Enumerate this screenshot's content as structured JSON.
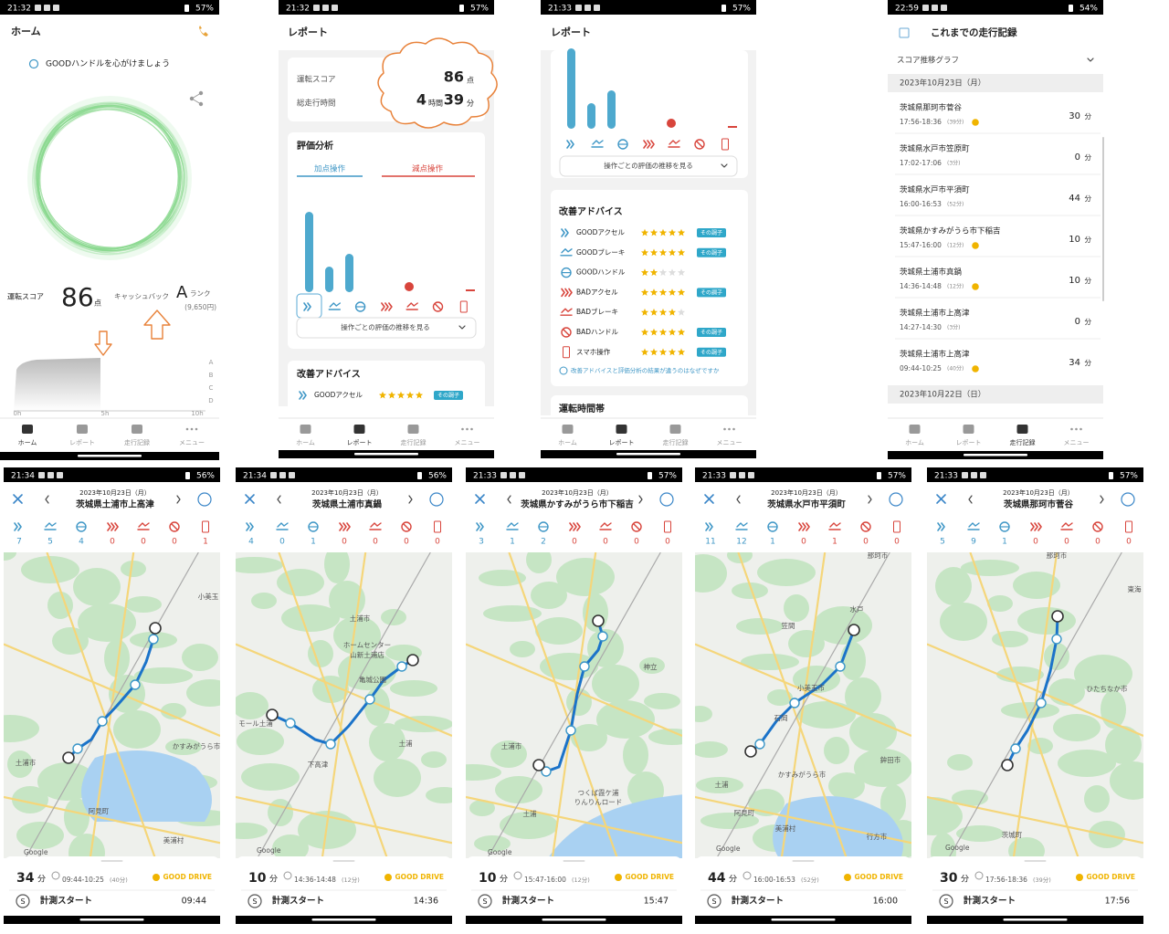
{
  "nav": [
    "ホーム",
    "レポート",
    "走行記録",
    "メニュー"
  ],
  "home": {
    "status_time": "21:32",
    "battery": "57%",
    "title": "ホーム",
    "tip": "GOODハンドルを心がけましょう",
    "score_label": "運転スコア",
    "score": 86,
    "score_unit": "点",
    "cashback_label": "キャッシュバック",
    "rank": "A",
    "rank_unit": "ランク",
    "cashback": "(9,650円)",
    "chart_x": [
      "0h",
      "5h",
      "10h"
    ],
    "chart_y": [
      "A",
      "B",
      "C",
      "D"
    ]
  },
  "report_summary": {
    "status_time": "21:32",
    "battery": "57%",
    "title": "レポート",
    "score_label": "運転スコア",
    "score": 86,
    "score_unit": "点",
    "time_label": "総走行時間",
    "hours": 4,
    "hours_unit": "時間",
    "minutes": 39,
    "minutes_unit": "分",
    "eval_title": "評価分析",
    "tabs": [
      "加点操作",
      "減点操作"
    ],
    "trend_button": "操作ごとの評価の推移を見る",
    "advice_title": "改善アドバイス",
    "advice": [
      {
        "name": "GOODアクセル",
        "stars": 5,
        "badge": "その調子"
      }
    ]
  },
  "report_advice": {
    "status_time": "21:33",
    "battery": "57%",
    "title": "レポート",
    "trend_button": "操作ごとの評価の推移を見る",
    "advice_title": "改善アドバイス",
    "advice": [
      {
        "name": "GOODアクセル",
        "stars": 5,
        "badge": "その調子"
      },
      {
        "name": "GOODブレーキ",
        "stars": 5,
        "badge": "その調子"
      },
      {
        "name": "GOODハンドル",
        "stars": 2
      },
      {
        "name": "BADアクセル",
        "stars": 5,
        "badge": "その調子"
      },
      {
        "name": "BADブレーキ",
        "stars": 4
      },
      {
        "name": "BADハンドル",
        "stars": 5,
        "badge": "その調子"
      },
      {
        "name": "スマホ操作",
        "stars": 5,
        "badge": "その調子"
      }
    ],
    "help_link": "改善アドバイスと評価分析の結果が違うのはなぜですか",
    "section": "運転時間帯"
  },
  "history": {
    "status_time": "22:59",
    "battery": "54%",
    "title": "これまでの走行記録",
    "graph": "スコア推移グラフ",
    "date1": "2023年10月23日（月）",
    "date2": "2023年10月22日（日）",
    "duration_unit": "分",
    "trips": [
      {
        "place": "茨城県那珂市菅谷",
        "time": "17:56-18:36",
        "length": "(39分)",
        "good": true,
        "duration": 30
      },
      {
        "place": "茨城県水戸市笠原町",
        "time": "17:02-17:06",
        "length": "(3分)",
        "good": false,
        "duration": 0
      },
      {
        "place": "茨城県水戸市平須町",
        "time": "16:00-16:53",
        "length": "(52分)",
        "good": false,
        "duration": 44
      },
      {
        "place": "茨城県かすみがうら市下稲吉",
        "time": "15:47-16:00",
        "length": "(12分)",
        "good": true,
        "duration": 10
      },
      {
        "place": "茨城県土浦市真鍋",
        "time": "14:36-14:48",
        "length": "(12分)",
        "good": true,
        "duration": 10
      },
      {
        "place": "茨城県土浦市上高津",
        "time": "14:27-14:30",
        "length": "(3分)",
        "good": false,
        "duration": 0
      },
      {
        "place": "茨城県土浦市上高津",
        "time": "09:44-10:25",
        "length": "(40分)",
        "good": true,
        "duration": 34
      }
    ]
  },
  "trip_common": {
    "duration_unit": "分",
    "badge": "GOOD DRIVE",
    "start_label": "計測スタート",
    "start_icon": "S"
  },
  "trips": [
    {
      "status_time": "21:34",
      "battery": "56%",
      "date": "2023年10月23日（月）",
      "place": "茨城県土浦市上高津",
      "counts": [
        7,
        5,
        4,
        0,
        0,
        0,
        1
      ],
      "duration": 34,
      "time": "09:44-10:25",
      "length": "(40分)",
      "start_time": "09:44",
      "map_labels": [
        "土浦市",
        "かすみがうら市",
        "阿見町",
        "美浦村",
        "小美玉",
        "Google"
      ]
    },
    {
      "status_time": "21:34",
      "battery": "56%",
      "date": "2023年10月23日（月）",
      "place": "茨城県土浦市真鍋",
      "counts": [
        4,
        0,
        1,
        0,
        0,
        0,
        0
      ],
      "duration": 10,
      "time": "14:36-14:48",
      "length": "(12分)",
      "start_time": "14:36",
      "map_labels": [
        "土浦市",
        "ホームセンター",
        "山新土浦店",
        "亀城公園",
        "モール土浦",
        "下高津",
        "土浦",
        "Google"
      ]
    },
    {
      "status_time": "21:33",
      "battery": "57%",
      "date": "2023年10月23日（月）",
      "place": "茨城県かすみがうら市下稲吉",
      "counts": [
        3,
        1,
        2,
        0,
        0,
        0,
        0
      ],
      "duration": 10,
      "time": "15:47-16:00",
      "length": "(12分)",
      "start_time": "15:47",
      "map_labels": [
        "土浦市",
        "神立",
        "つくば霞ケ浦",
        "りんりんロード",
        "土浦",
        "Google"
      ]
    },
    {
      "status_time": "21:33",
      "battery": "57%",
      "date": "2023年10月23日（月）",
      "place": "茨城県水戸市平須町",
      "counts": [
        11,
        12,
        1,
        0,
        1,
        0,
        0
      ],
      "duration": 44,
      "time": "16:00-16:53",
      "length": "(52分)",
      "start_time": "16:00",
      "map_labels": [
        "那珂市",
        "水戸",
        "笠間",
        "小美玉市",
        "石岡",
        "かすみがうら市",
        "鉾田市",
        "土浦",
        "阿見町",
        "美浦村",
        "行方市",
        "Google"
      ]
    },
    {
      "status_time": "21:33",
      "battery": "57%",
      "date": "2023年10月23日（月）",
      "place": "茨城県那珂市菅谷",
      "counts": [
        5,
        9,
        1,
        0,
        0,
        0,
        0
      ],
      "duration": 30,
      "time": "17:56-18:36",
      "length": "(39分)",
      "start_time": "17:56",
      "map_labels": [
        "那珂市",
        "東海",
        "ひたちなか市",
        "茨城町",
        "Google"
      ]
    }
  ]
}
